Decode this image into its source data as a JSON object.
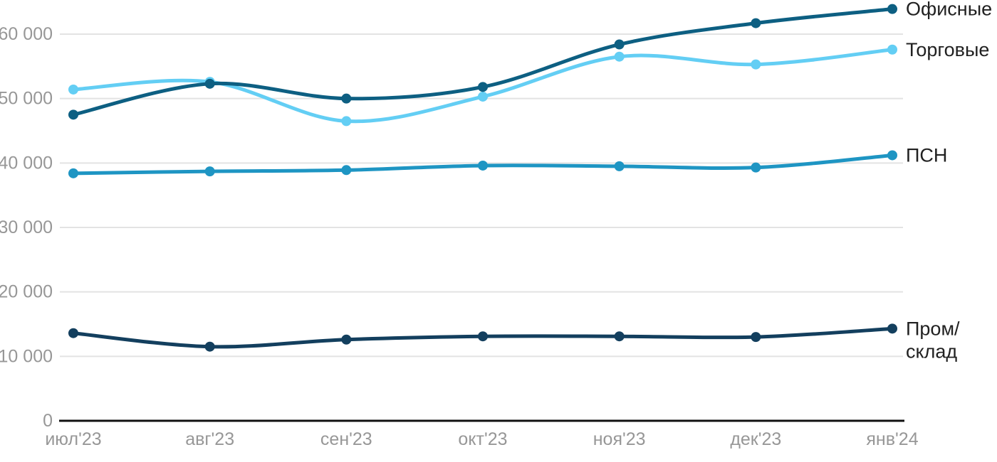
{
  "chart_data": {
    "type": "line",
    "title": "",
    "xlabel": "",
    "ylabel": "",
    "categories": [
      "июл'23",
      "авг'23",
      "сен'23",
      "окт'23",
      "ноя'23",
      "дек'23",
      "янв'24"
    ],
    "series": [
      {
        "name": "Офисные",
        "legend_lines": [
          "Офисные"
        ],
        "color": "#0d5f82",
        "values": [
          47500,
          52300,
          50000,
          51800,
          58400,
          61700,
          63900
        ]
      },
      {
        "name": "Торговые",
        "legend_lines": [
          "Торговые"
        ],
        "color": "#63cef4",
        "values": [
          51400,
          52600,
          46500,
          50300,
          56500,
          55300,
          57600
        ]
      },
      {
        "name": "ПСН",
        "legend_lines": [
          "ПСН"
        ],
        "color": "#1e95c3",
        "values": [
          38400,
          38700,
          38900,
          39600,
          39500,
          39300,
          41200
        ]
      },
      {
        "name": "Пром/склад",
        "legend_lines": [
          "Пром/",
          "склад"
        ],
        "color": "#133f5e",
        "values": [
          13600,
          11500,
          12600,
          13100,
          13100,
          13000,
          14300
        ]
      }
    ],
    "y_ticks": [
      0,
      10000,
      20000,
      30000,
      40000,
      50000,
      60000
    ],
    "y_tick_labels": [
      "0",
      "10 000",
      "20 000",
      "30 000",
      "40 000",
      "50 000",
      "60 000"
    ],
    "ylim": [
      0,
      65000
    ],
    "grid": true,
    "legend_position": "right"
  },
  "colors": {
    "background": "#ffffff",
    "gridline": "#e3e3e3",
    "axis_line": "#111111",
    "tick_label": "#979797",
    "legend_text": "#212121"
  }
}
